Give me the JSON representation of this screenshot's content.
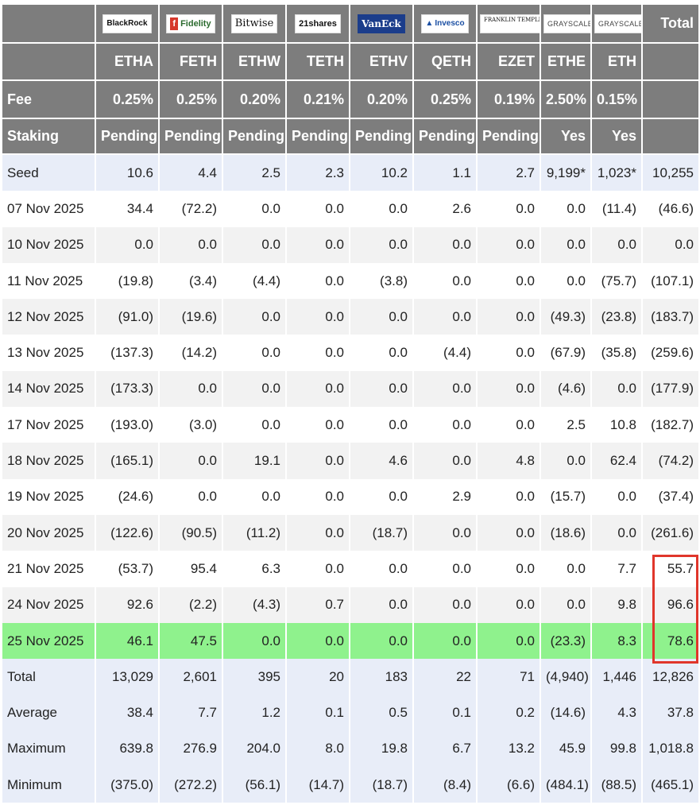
{
  "header": {
    "logos": [
      "BlackRock",
      "Fidelity",
      "Bitwise",
      "21shares",
      "VanEck",
      "Invesco",
      "FRANKLIN TEMPLETON",
      "GRAYSCALE",
      "GRAYSCALE"
    ],
    "total_label": "Total",
    "tickers": [
      "ETHA",
      "FETH",
      "ETHW",
      "TETH",
      "ETHV",
      "QETH",
      "EZET",
      "ETHE",
      "ETH"
    ],
    "fee_label": "Fee",
    "fees": [
      "0.25%",
      "0.25%",
      "0.20%",
      "0.21%",
      "0.20%",
      "0.25%",
      "0.19%",
      "2.50%",
      "0.15%"
    ],
    "staking_label": "Staking",
    "staking": [
      "Pending",
      "Pending",
      "Pending",
      "Pending",
      "Pending",
      "Pending",
      "Pending",
      "Yes",
      "Yes"
    ]
  },
  "rows": [
    {
      "label": "Seed",
      "cells": [
        "10.6",
        "4.4",
        "2.5",
        "2.3",
        "10.2",
        "1.1",
        "2.7",
        "9,199*",
        "1,023*",
        "10,255"
      ]
    },
    {
      "label": "07 Nov 2025",
      "cells": [
        "34.4",
        "(72.2)",
        "0.0",
        "0.0",
        "0.0",
        "2.6",
        "0.0",
        "0.0",
        "(11.4)",
        "(46.6)"
      ]
    },
    {
      "label": "10 Nov 2025",
      "cells": [
        "0.0",
        "0.0",
        "0.0",
        "0.0",
        "0.0",
        "0.0",
        "0.0",
        "0.0",
        "0.0",
        "0.0"
      ]
    },
    {
      "label": "11 Nov 2025",
      "cells": [
        "(19.8)",
        "(3.4)",
        "(4.4)",
        "0.0",
        "(3.8)",
        "0.0",
        "0.0",
        "0.0",
        "(75.7)",
        "(107.1)"
      ]
    },
    {
      "label": "12 Nov 2025",
      "cells": [
        "(91.0)",
        "(19.6)",
        "0.0",
        "0.0",
        "0.0",
        "0.0",
        "0.0",
        "(49.3)",
        "(23.8)",
        "(183.7)"
      ]
    },
    {
      "label": "13 Nov 2025",
      "cells": [
        "(137.3)",
        "(14.2)",
        "0.0",
        "0.0",
        "0.0",
        "(4.4)",
        "0.0",
        "(67.9)",
        "(35.8)",
        "(259.6)"
      ]
    },
    {
      "label": "14 Nov 2025",
      "cells": [
        "(173.3)",
        "0.0",
        "0.0",
        "0.0",
        "0.0",
        "0.0",
        "0.0",
        "(4.6)",
        "0.0",
        "(177.9)"
      ]
    },
    {
      "label": "17 Nov 2025",
      "cells": [
        "(193.0)",
        "(3.0)",
        "0.0",
        "0.0",
        "0.0",
        "0.0",
        "0.0",
        "2.5",
        "10.8",
        "(182.7)"
      ]
    },
    {
      "label": "18 Nov 2025",
      "cells": [
        "(165.1)",
        "0.0",
        "19.1",
        "0.0",
        "4.6",
        "0.0",
        "4.8",
        "0.0",
        "62.4",
        "(74.2)"
      ]
    },
    {
      "label": "19 Nov 2025",
      "cells": [
        "(24.6)",
        "0.0",
        "0.0",
        "0.0",
        "0.0",
        "2.9",
        "0.0",
        "(15.7)",
        "0.0",
        "(37.4)"
      ]
    },
    {
      "label": "20 Nov 2025",
      "cells": [
        "(122.6)",
        "(90.5)",
        "(11.2)",
        "0.0",
        "(18.7)",
        "0.0",
        "0.0",
        "(18.6)",
        "0.0",
        "(261.6)"
      ]
    },
    {
      "label": "21 Nov 2025",
      "cells": [
        "(53.7)",
        "95.4",
        "6.3",
        "0.0",
        "0.0",
        "0.0",
        "0.0",
        "0.0",
        "7.7",
        "55.7"
      ]
    },
    {
      "label": "24 Nov 2025",
      "cells": [
        "92.6",
        "(2.2)",
        "(4.3)",
        "0.7",
        "0.0",
        "0.0",
        "0.0",
        "0.0",
        "9.8",
        "96.6"
      ]
    },
    {
      "label": "25 Nov 2025",
      "cells": [
        "46.1",
        "47.5",
        "0.0",
        "0.0",
        "0.0",
        "0.0",
        "0.0",
        "(23.3)",
        "8.3",
        "78.6"
      ]
    },
    {
      "label": "Total",
      "cells": [
        "13,029",
        "2,601",
        "395",
        "20",
        "183",
        "22",
        "71",
        "(4,940)",
        "1,446",
        "12,826"
      ]
    },
    {
      "label": "Average",
      "cells": [
        "38.4",
        "7.7",
        "1.2",
        "0.1",
        "0.5",
        "0.1",
        "0.2",
        "(14.6)",
        "4.3",
        "37.8"
      ]
    },
    {
      "label": "Maximum",
      "cells": [
        "639.8",
        "276.9",
        "204.0",
        "8.0",
        "19.8",
        "6.7",
        "13.2",
        "45.9",
        "99.8",
        "1,018.8"
      ]
    },
    {
      "label": "Minimum",
      "cells": [
        "(375.0)",
        "(272.2)",
        "(56.1)",
        "(14.7)",
        "(18.7)",
        "(8.4)",
        "(6.6)",
        "(484.1)",
        "(88.5)",
        "(465.1)"
      ]
    }
  ],
  "colors": {
    "header_bg": "#7d7d7d",
    "negative": "#d13b32",
    "highlight_row": "#8ff28d",
    "summary_bg": "#e8edf8",
    "red_box": "#e0362b"
  }
}
